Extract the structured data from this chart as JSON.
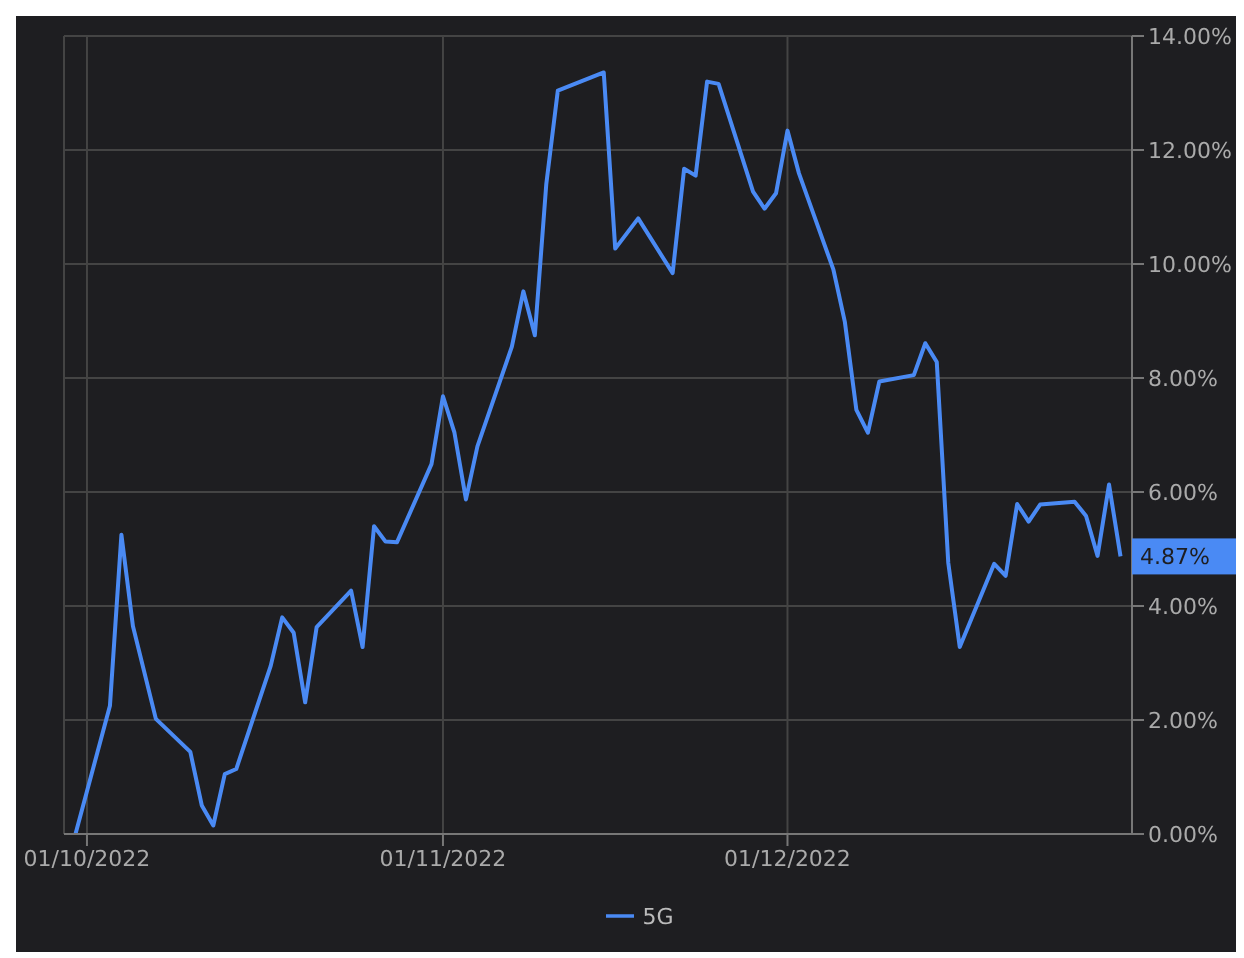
{
  "chart_data": {
    "type": "line",
    "x": [
      "2022-09-30",
      "2022-10-03",
      "2022-10-04",
      "2022-10-05",
      "2022-10-07",
      "2022-10-10",
      "2022-10-11",
      "2022-10-12",
      "2022-10-13",
      "2022-10-14",
      "2022-10-17",
      "2022-10-18",
      "2022-10-19",
      "2022-10-20",
      "2022-10-21",
      "2022-10-24",
      "2022-10-25",
      "2022-10-26",
      "2022-10-27",
      "2022-10-28",
      "2022-10-31",
      "2022-11-01",
      "2022-11-02",
      "2022-11-03",
      "2022-11-04",
      "2022-11-07",
      "2022-11-08",
      "2022-11-09",
      "2022-11-10",
      "2022-11-11",
      "2022-11-15",
      "2022-11-16",
      "2022-11-18",
      "2022-11-21",
      "2022-11-22",
      "2022-11-23",
      "2022-11-24",
      "2022-11-25",
      "2022-11-28",
      "2022-11-29",
      "2022-11-30",
      "2022-12-01",
      "2022-12-02",
      "2022-12-05",
      "2022-12-06",
      "2022-12-07",
      "2022-12-08",
      "2022-12-09",
      "2022-12-12",
      "2022-12-13",
      "2022-12-14",
      "2022-12-15",
      "2022-12-16",
      "2022-12-19",
      "2022-12-20",
      "2022-12-21",
      "2022-12-22",
      "2022-12-23",
      "2022-12-26",
      "2022-12-27",
      "2022-12-28",
      "2022-12-29",
      "2022-12-30"
    ],
    "series": [
      {
        "name": "5G",
        "color": "#4a8af4",
        "values": [
          0,
          2.25,
          5.25,
          3.65,
          2.02,
          1.44,
          0.5,
          0.15,
          1.05,
          1.14,
          2.95,
          3.8,
          3.53,
          2.31,
          3.63,
          4.27,
          3.28,
          5.4,
          5.13,
          5.12,
          6.49,
          7.68,
          7.04,
          5.87,
          6.8,
          8.55,
          9.52,
          8.75,
          11.41,
          13.04,
          13.36,
          10.27,
          10.8,
          9.84,
          11.67,
          11.55,
          13.2,
          13.16,
          11.27,
          10.97,
          11.24,
          12.34,
          11.59,
          9.9,
          8.98,
          7.44,
          7.04,
          7.94,
          8.05,
          8.61,
          8.28,
          4.76,
          3.28,
          4.74,
          4.53,
          5.79,
          5.48,
          5.78,
          5.83,
          5.58,
          4.88,
          6.13,
          4.87
        ]
      }
    ],
    "xlim": [
      "2022-09-29",
      "2022-12-31"
    ],
    "xticks": [
      {
        "value": "2022-10-01",
        "label": "01/10/2022"
      },
      {
        "value": "2022-11-01",
        "label": "01/11/2022"
      },
      {
        "value": "2022-12-01",
        "label": "01/12/2022"
      }
    ],
    "ylim": [
      0,
      14
    ],
    "yticks": [
      {
        "value": 0,
        "label": "0.00%"
      },
      {
        "value": 2,
        "label": "2.00%"
      },
      {
        "value": 4,
        "label": "4.00%"
      },
      {
        "value": 6,
        "label": "6.00%"
      },
      {
        "value": 8,
        "label": "8.00%"
      },
      {
        "value": 10,
        "label": "10.00%"
      },
      {
        "value": 12,
        "label": "12.00%"
      },
      {
        "value": 14,
        "label": "14.00%"
      }
    ],
    "annotations": [
      {
        "text": "4.87%",
        "x": "2022-12-30",
        "y": 4.87
      }
    ],
    "grid": true,
    "legend": "bottom",
    "marker": "none",
    "line_style": "solid"
  }
}
